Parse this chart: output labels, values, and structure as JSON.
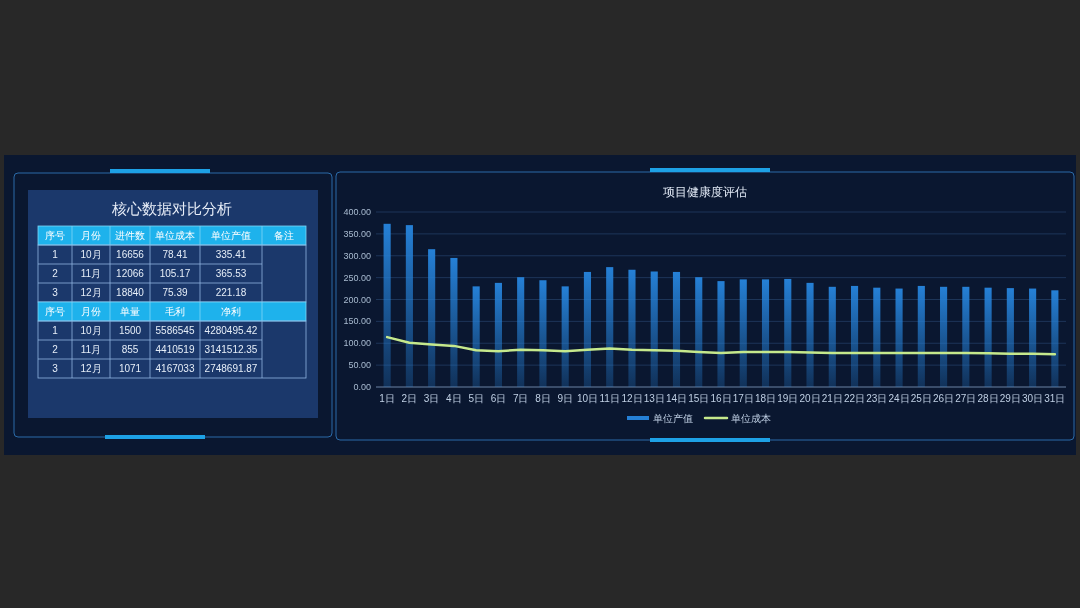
{
  "chart_data": [
    {
      "type": "other",
      "title": "核心数据对比分析",
      "categories": [
        "序号",
        "月份",
        "进件数",
        "单位成本",
        "单位产值",
        "备注"
      ],
      "cell_labels": [
        [
          "1",
          "10月",
          "16656",
          "78.41",
          "335.41",
          null
        ],
        [
          "2",
          "11月",
          "12066",
          "105.17",
          "365.53",
          null
        ],
        [
          "3",
          "12月",
          "18840",
          "75.39",
          "221.18",
          null
        ]
      ]
    },
    {
      "type": "other",
      "categories": [
        "序号",
        "月份",
        "单量",
        "毛利",
        "净利",
        null
      ],
      "cell_labels": [
        [
          "1",
          "10月",
          "1500",
          "5586545",
          "4280495.42",
          null
        ],
        [
          "2",
          "11月",
          "855",
          "4410519",
          "3141512.35",
          null
        ],
        [
          "3",
          "12月",
          "1071",
          "4167033",
          "2748691.87",
          null
        ]
      ]
    },
    {
      "type": "bar",
      "title": "项目健康度评估",
      "categories": [
        "1日",
        "2日",
        "3日",
        "4日",
        "5日",
        "6日",
        "7日",
        "8日",
        "9日",
        "10日",
        "11日",
        "12日",
        "13日",
        "14日",
        "15日",
        "16日",
        "17日",
        "18日",
        "19日",
        "20日",
        "21日",
        "22日",
        "23日",
        "24日",
        "25日",
        "26日",
        "27日",
        "28日",
        "29日",
        "30日",
        "31日"
      ],
      "series": [
        {
          "name": "单位产值",
          "type": "bar",
          "color": "#2580d6",
          "values": [
            373,
            370,
            315,
            295,
            230,
            238,
            251,
            244,
            230,
            263,
            274,
            268,
            264,
            263,
            251,
            242,
            246,
            246,
            247,
            238,
            229,
            231,
            227,
            225,
            231,
            229,
            229,
            227,
            226,
            225,
            221
          ]
        },
        {
          "name": "单位成本",
          "type": "line",
          "color": "#c6e98c",
          "values": [
            114,
            101,
            97,
            94,
            84,
            82,
            85,
            84,
            82,
            85,
            88,
            85,
            84,
            83,
            80,
            78,
            80,
            80,
            80,
            79,
            78,
            78,
            78,
            78,
            78,
            78,
            78,
            77,
            76,
            76,
            75
          ]
        }
      ],
      "ylim": [
        0,
        400
      ],
      "yticks": [
        {
          "value": 0,
          "label": "0.00"
        },
        {
          "value": 50,
          "label": "50.00"
        },
        {
          "value": 100,
          "label": "100.00"
        },
        {
          "value": 150,
          "label": "150.00"
        },
        {
          "value": 200,
          "label": "200.00"
        },
        {
          "value": 250,
          "label": "250.00"
        },
        {
          "value": 300,
          "label": "300.00"
        },
        {
          "value": 350,
          "label": "350.00"
        },
        {
          "value": 400,
          "label": "400.00"
        }
      ],
      "grid": "y",
      "legend": "bottom"
    }
  ]
}
